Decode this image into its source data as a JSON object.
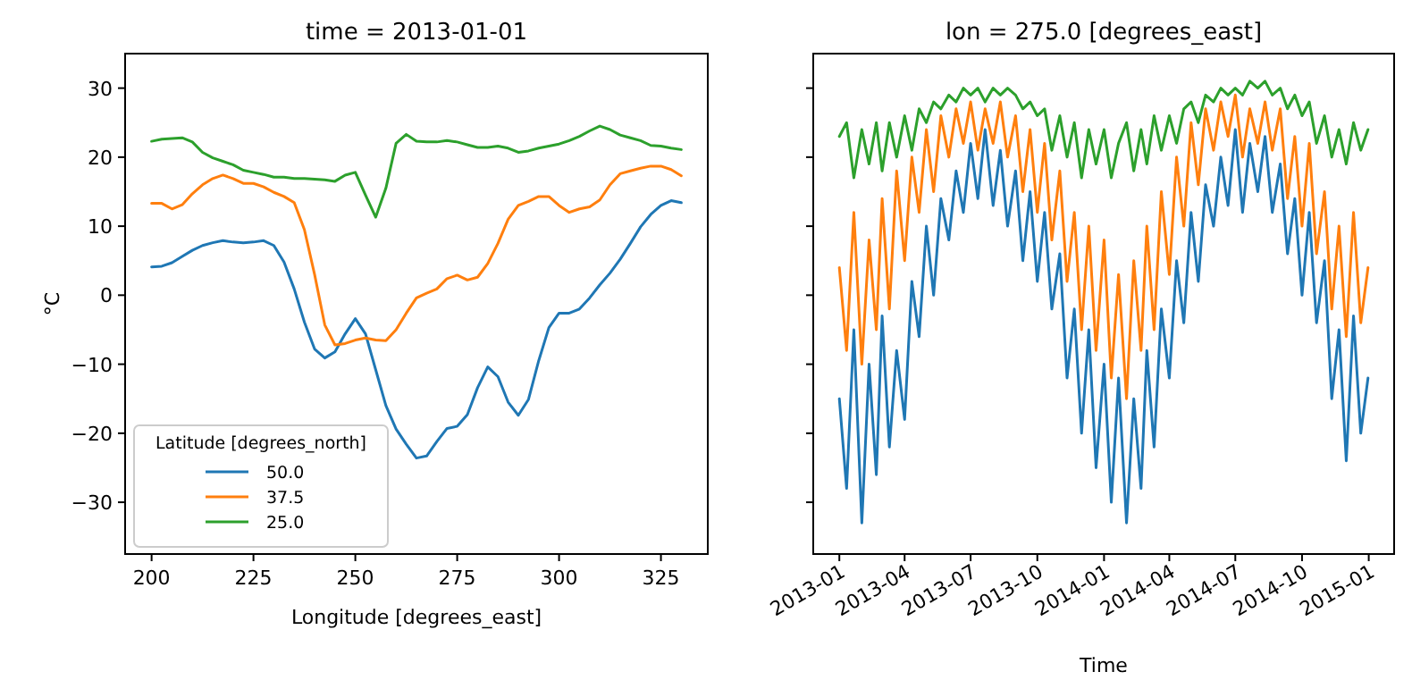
{
  "chart_data": [
    {
      "type": "line",
      "title": "time = 2013-01-01",
      "xlabel": "Longitude [degrees_east]",
      "ylabel": "°C",
      "legend_title": "Latitude [degrees_north]",
      "legend": "bottom left",
      "x": [
        200,
        202.5,
        205,
        207.5,
        210,
        212.5,
        215,
        217.5,
        220,
        222.5,
        225,
        227.5,
        230,
        232.5,
        235,
        237.5,
        240,
        242.5,
        245,
        247.5,
        250,
        252.5,
        255,
        257.5,
        260,
        262.5,
        265,
        267.5,
        270,
        272.5,
        275,
        277.5,
        280,
        282.5,
        285,
        287.5,
        290,
        292.5,
        295,
        297.5,
        300,
        302.5,
        305,
        307.5,
        310,
        312.5,
        315,
        317.5,
        320,
        322.5,
        325,
        327.5,
        330
      ],
      "xlim": [
        193.5,
        336.5
      ],
      "xticks": [
        200,
        225,
        250,
        275,
        300,
        325
      ],
      "ylim": [
        -37.5,
        35
      ],
      "yticks": [
        -30,
        -20,
        -10,
        0,
        10,
        20,
        30
      ],
      "series": [
        {
          "name": "50.0",
          "color": "#1f77b4",
          "values": [
            4.1,
            4.2,
            4.7,
            5.6,
            6.5,
            7.2,
            7.6,
            7.9,
            7.7,
            7.6,
            7.7,
            7.9,
            7.2,
            4.8,
            0.9,
            -3.9,
            -7.8,
            -9.1,
            -8.2,
            -5.6,
            -3.4,
            -5.6,
            -10.8,
            -16,
            -19.4,
            -21.6,
            -23.6,
            -23.3,
            -21.2,
            -19.3,
            -19.0,
            -17.3,
            -13.4,
            -10.4,
            -11.8,
            -15.5,
            -17.4,
            -15.1,
            -9.5,
            -4.7,
            -2.6,
            -2.6,
            -2.0,
            -0.4,
            1.5,
            3.2,
            5.2,
            7.5,
            9.9,
            11.7,
            13.0,
            13.7,
            13.4
          ]
        },
        {
          "name": "37.5",
          "color": "#ff7f0e",
          "values": [
            13.3,
            13.3,
            12.5,
            13.1,
            14.7,
            16.0,
            16.9,
            17.4,
            16.9,
            16.2,
            16.2,
            15.7,
            14.9,
            14.3,
            13.4,
            9.5,
            3.0,
            -4.3,
            -7.2,
            -7.0,
            -6.5,
            -6.2,
            -6.5,
            -6.6,
            -5.0,
            -2.6,
            -0.4,
            0.3,
            0.9,
            2.4,
            2.9,
            2.2,
            2.6,
            4.6,
            7.5,
            11.0,
            13.0,
            13.6,
            14.3,
            14.3,
            13.0,
            12.0,
            12.5,
            12.8,
            13.8,
            16.0,
            17.6,
            18.0,
            18.4,
            18.7,
            18.7,
            18.2,
            17.3
          ]
        },
        {
          "name": "25.0",
          "color": "#2ca02c",
          "values": [
            22.3,
            22.6,
            22.7,
            22.8,
            22.2,
            20.7,
            19.9,
            19.4,
            18.9,
            18.1,
            17.8,
            17.5,
            17.1,
            17.1,
            16.9,
            16.9,
            16.8,
            16.7,
            16.5,
            17.4,
            17.8,
            14.5,
            11.3,
            15.5,
            22.0,
            23.3,
            22.3,
            22.2,
            22.2,
            22.4,
            22.2,
            21.8,
            21.4,
            21.4,
            21.6,
            21.3,
            20.7,
            20.9,
            21.3,
            21.6,
            21.9,
            22.4,
            23.0,
            23.8,
            24.5,
            24.0,
            23.2,
            22.8,
            22.4,
            21.7,
            21.6,
            21.3,
            21.1
          ]
        }
      ]
    },
    {
      "type": "line",
      "title": "lon = 275.0 [degrees_east]",
      "xlabel": "Time",
      "tick_labels": "x",
      "x": [
        "2013-01-01",
        "2013-01-11",
        "2013-01-21",
        "2013-02-01",
        "2013-02-11",
        "2013-02-21",
        "2013-03-01",
        "2013-03-11",
        "2013-03-21",
        "2013-04-01",
        "2013-04-11",
        "2013-04-21",
        "2013-05-01",
        "2013-05-11",
        "2013-05-21",
        "2013-06-01",
        "2013-06-11",
        "2013-06-21",
        "2013-07-01",
        "2013-07-11",
        "2013-07-21",
        "2013-08-01",
        "2013-08-11",
        "2013-08-21",
        "2013-09-01",
        "2013-09-11",
        "2013-09-21",
        "2013-10-01",
        "2013-10-11",
        "2013-10-21",
        "2013-11-01",
        "2013-11-11",
        "2013-11-21",
        "2013-12-01",
        "2013-12-11",
        "2013-12-21",
        "2014-01-01",
        "2014-01-11",
        "2014-01-21",
        "2014-02-01",
        "2014-02-11",
        "2014-02-21",
        "2014-03-01",
        "2014-03-11",
        "2014-03-21",
        "2014-04-01",
        "2014-04-11",
        "2014-04-21",
        "2014-05-01",
        "2014-05-11",
        "2014-05-21",
        "2014-06-01",
        "2014-06-11",
        "2014-06-21",
        "2014-07-01",
        "2014-07-11",
        "2014-07-21",
        "2014-08-01",
        "2014-08-11",
        "2014-08-21",
        "2014-09-01",
        "2014-09-11",
        "2014-09-21",
        "2014-10-01",
        "2014-10-11",
        "2014-10-21",
        "2014-11-01",
        "2014-11-11",
        "2014-11-21",
        "2014-12-01",
        "2014-12-11",
        "2014-12-21",
        "2014-12-31"
      ],
      "xlim": [
        "2012-11-26",
        "2015-02-05"
      ],
      "xticks": [
        "2013-01",
        "2013-04",
        "2013-07",
        "2013-10",
        "2014-01",
        "2014-04",
        "2014-07",
        "2014-10",
        "2015-01"
      ],
      "ylim": [
        -37.5,
        35
      ],
      "yticks": [
        -30,
        -20,
        -10,
        0,
        10,
        20,
        30
      ],
      "series": [
        {
          "color": "#1f77b4",
          "values": [
            -15,
            -28,
            -5,
            -33,
            -10,
            -26,
            -3,
            -22,
            -8,
            -18,
            2,
            -6,
            10,
            0,
            14,
            8,
            18,
            12,
            22,
            14,
            24,
            13,
            21,
            10,
            18,
            5,
            15,
            2,
            12,
            -2,
            6,
            -12,
            -2,
            -20,
            -5,
            -25,
            -10,
            -30,
            -12,
            -33,
            -15,
            -28,
            -8,
            -22,
            -2,
            -12,
            5,
            -4,
            12,
            2,
            16,
            10,
            20,
            13,
            24,
            12,
            22,
            15,
            23,
            12,
            19,
            6,
            14,
            0,
            12,
            -4,
            5,
            -15,
            -5,
            -24,
            -3,
            -20,
            -12
          ]
        },
        {
          "color": "#ff7f0e",
          "values": [
            4,
            -8,
            12,
            -10,
            8,
            -5,
            14,
            -2,
            18,
            5,
            20,
            12,
            24,
            15,
            26,
            20,
            27,
            22,
            28,
            21,
            27,
            22,
            28,
            20,
            26,
            15,
            24,
            12,
            22,
            8,
            18,
            2,
            12,
            -5,
            10,
            -8,
            8,
            -12,
            3,
            -15,
            5,
            -8,
            10,
            -5,
            15,
            3,
            20,
            10,
            25,
            16,
            27,
            21,
            28,
            23,
            29,
            20,
            27,
            22,
            28,
            21,
            27,
            14,
            23,
            10,
            22,
            6,
            15,
            -2,
            10,
            -6,
            12,
            -4,
            4
          ]
        },
        {
          "color": "#2ca02c",
          "values": [
            23,
            25,
            17,
            24,
            19,
            25,
            18,
            25,
            20,
            26,
            21,
            27,
            25,
            28,
            27,
            29,
            28,
            30,
            29,
            30,
            28,
            30,
            29,
            30,
            29,
            27,
            28,
            26,
            27,
            21,
            26,
            20,
            25,
            17,
            24,
            19,
            24,
            17,
            22,
            25,
            18,
            24,
            19,
            26,
            21,
            26,
            22,
            27,
            28,
            25,
            29,
            28,
            30,
            29,
            30,
            29,
            31,
            30,
            31,
            29,
            30,
            27,
            29,
            26,
            28,
            22,
            26,
            20,
            24,
            19,
            25,
            21,
            24
          ]
        }
      ]
    }
  ]
}
